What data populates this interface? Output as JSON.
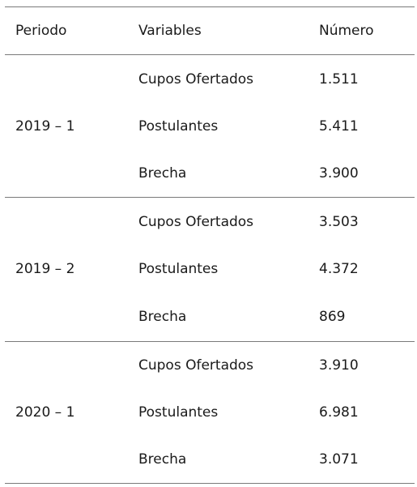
{
  "table": {
    "headers": {
      "periodo": "Periodo",
      "variables": "Variables",
      "numero": "Número"
    },
    "groups": [
      {
        "periodo": "2019 – 1",
        "rows": [
          {
            "variable": "Cupos Ofertados",
            "numero": "1.511"
          },
          {
            "variable": "Postulantes",
            "numero": "5.411"
          },
          {
            "variable": "Brecha",
            "numero": "3.900"
          }
        ]
      },
      {
        "periodo": "2019 – 2",
        "rows": [
          {
            "variable": "Cupos Ofertados",
            "numero": "3.503"
          },
          {
            "variable": "Postulantes",
            "numero": "4.372"
          },
          {
            "variable": "Brecha",
            "numero": "869"
          }
        ]
      },
      {
        "periodo": "2020 – 1",
        "rows": [
          {
            "variable": "Cupos Ofertados",
            "numero": "3.910"
          },
          {
            "variable": "Postulantes",
            "numero": "6.981"
          },
          {
            "variable": "Brecha",
            "numero": "3.071"
          }
        ]
      }
    ]
  }
}
